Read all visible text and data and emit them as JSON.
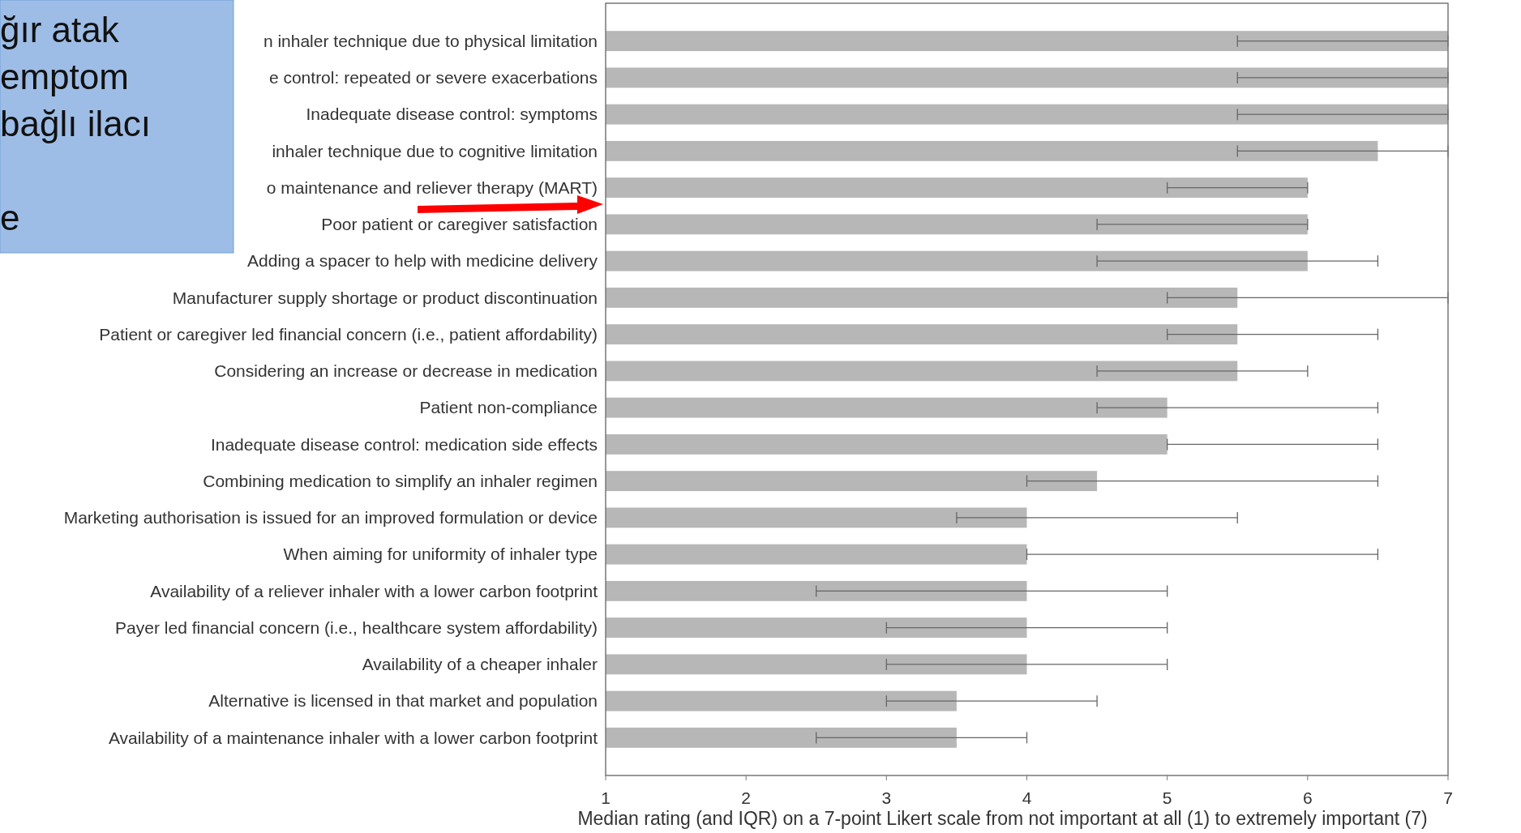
{
  "chart_data": {
    "type": "bar",
    "orientation": "horizontal",
    "xlabel": "Median rating (and IQR) on a 7-point Likert scale from not important at all (1) to extremely important (7)",
    "categories": [
      "n inhaler technique due to physical limitation",
      "e control: repeated or severe exacerbations",
      "Inadequate disease control: symptoms",
      "inhaler technique due to cognitive limitation",
      "o maintenance and reliever therapy (MART)",
      "Poor patient or caregiver satisfaction",
      "Adding a spacer to help with medicine delivery",
      "Manufacturer supply shortage or product discontinuation",
      "Patient or caregiver led financial concern (i.e., patient affordability)",
      "Considering an increase or decrease in medication",
      "Patient non-compliance",
      "Inadequate disease control: medication side effects",
      "Combining medication to simplify an inhaler regimen",
      "Marketing authorisation is issued for an improved formulation or device",
      "When aiming for uniformity of inhaler type",
      "Availability of a reliever inhaler with a lower carbon footprint",
      "Payer led financial concern (i.e., healthcare system affordability)",
      "Availability of a cheaper inhaler",
      "Alternative is licensed in that market and population",
      "Availability of a maintenance inhaler with a lower carbon footprint"
    ],
    "values": [
      7,
      7,
      7,
      6.5,
      6,
      6,
      6,
      5.5,
      5.5,
      5.5,
      5,
      5,
      4.5,
      4,
      4,
      4,
      4,
      4,
      3.5,
      3.5
    ],
    "errors": [
      [
        5.5,
        7
      ],
      [
        5.5,
        7
      ],
      [
        5.5,
        7
      ],
      [
        5.5,
        7
      ],
      [
        5,
        6
      ],
      [
        4.5,
        6
      ],
      [
        4.5,
        6.5
      ],
      [
        5,
        7
      ],
      [
        5,
        6.5
      ],
      [
        4.5,
        6
      ],
      [
        4.5,
        6.5
      ],
      [
        5,
        6.5
      ],
      [
        4,
        6.5
      ],
      [
        3.5,
        5.5
      ],
      [
        4,
        6.5
      ],
      [
        2.5,
        5
      ],
      [
        3,
        5
      ],
      [
        3,
        5
      ],
      [
        3,
        4.5
      ],
      [
        2.5,
        4
      ]
    ],
    "color": "#b7b7b7",
    "xlim": [
      1,
      7
    ],
    "xticks": [
      1,
      2,
      3,
      4,
      5,
      6,
      7
    ],
    "annotations": [
      "ğır atak",
      "emptom",
      "bağlı ilacı",
      "e"
    ]
  }
}
